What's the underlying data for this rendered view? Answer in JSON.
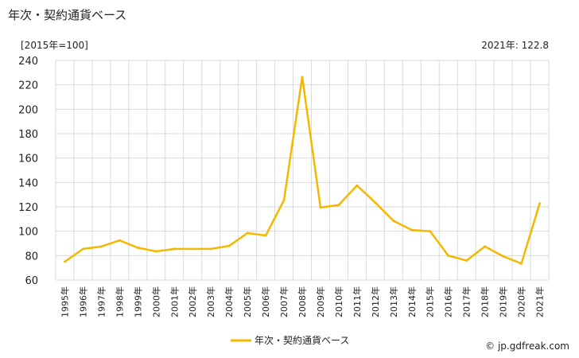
{
  "title": "年次・契約通貨ベース",
  "unit_label": "[2015年=100]",
  "note": "2021年: 122.8",
  "source": "© jp.gdfreak.com",
  "colors": {
    "line": "#f5b800",
    "grid": "#d9d9d9"
  },
  "chart_data": {
    "type": "line",
    "title": "年次・契約通貨ベース",
    "ylim": [
      60,
      240
    ],
    "yticks": [
      60,
      80,
      100,
      120,
      140,
      160,
      180,
      200,
      220,
      240
    ],
    "grid": true,
    "legend_position": "bottom-center",
    "categories": [
      "1995年",
      "1996年",
      "1997年",
      "1998年",
      "1999年",
      "2000年",
      "2001年",
      "2002年",
      "2003年",
      "2004年",
      "2005年",
      "2006年",
      "2007年",
      "2008年",
      "2009年",
      "2010年",
      "2011年",
      "2012年",
      "2013年",
      "2014年",
      "2015年",
      "2016年",
      "2017年",
      "2018年",
      "2019年",
      "2020年",
      "2021年"
    ],
    "series": [
      {
        "name": "年次・契約通貨ベース",
        "values": [
          75,
          85.5,
          87.5,
          92.5,
          86.5,
          83.5,
          85.5,
          85.5,
          85.5,
          88,
          98.5,
          96.5,
          125.5,
          226.5,
          119.5,
          121.5,
          137.5,
          123.5,
          108.5,
          101,
          100,
          80,
          76,
          87.5,
          79.5,
          73.5,
          122.8
        ]
      }
    ]
  }
}
